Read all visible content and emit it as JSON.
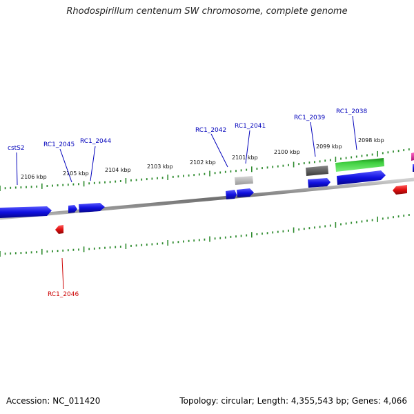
{
  "title": "Rhodospirillum centenum SW chromosome, complete genome",
  "footer": {
    "accession": "Accession: NC_011420",
    "summary": "Topology: circular; Length: 4,355,543 bp; Genes: 4,066"
  },
  "ticks": {
    "labels": [
      "2106 kbp",
      "2105 kbp",
      "2104 kbp",
      "2103 kbp",
      "2102 kbp",
      "2101 kbp",
      "2100 kbp",
      "2099 kbp",
      "2098 kbp"
    ]
  },
  "genes": {
    "labels": [
      "cstS2",
      "RC1_2045",
      "RC1_2044",
      "RC1_2042",
      "RC1_2041",
      "RC1_2039",
      "RC1_2038",
      "RC1_2046"
    ]
  },
  "colors": {
    "forward": "#1010e0",
    "reverse": "#e01010",
    "rna": "#30c030",
    "pseudo_light": "#b4b4b4",
    "pseudo_dark": "#606060",
    "misc": "#e0209a",
    "backbone": "#888888",
    "tick": "#2e8b2e",
    "label_forward": "#0000bb",
    "label_reverse": "#cc0000"
  }
}
